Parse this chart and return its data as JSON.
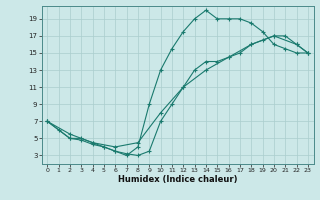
{
  "xlabel": "Humidex (Indice chaleur)",
  "bg_color": "#cce8e8",
  "line_color": "#1a7a6e",
  "grid_color": "#aacece",
  "xlim": [
    -0.5,
    23.5
  ],
  "ylim": [
    2,
    20.5
  ],
  "xticks": [
    0,
    1,
    2,
    3,
    4,
    5,
    6,
    7,
    8,
    9,
    10,
    11,
    12,
    13,
    14,
    15,
    16,
    17,
    18,
    19,
    20,
    21,
    22,
    23
  ],
  "yticks": [
    3,
    5,
    7,
    9,
    11,
    13,
    15,
    17,
    19
  ],
  "line1_x": [
    0,
    1,
    2,
    3,
    4,
    5,
    6,
    7,
    8,
    9,
    10,
    11,
    12,
    13,
    14,
    15,
    16,
    17,
    18,
    19,
    20,
    21,
    22,
    23
  ],
  "line1_y": [
    7,
    6,
    5,
    5,
    4.5,
    4,
    3.5,
    3,
    4,
    9,
    13,
    15.5,
    17.5,
    19,
    20,
    19,
    19,
    19,
    18.5,
    17.5,
    16,
    15.5,
    15,
    15
  ],
  "line2_x": [
    0,
    2,
    3,
    4,
    5,
    6,
    7,
    8,
    9,
    10,
    11,
    12,
    13,
    14,
    15,
    16,
    17,
    18,
    19,
    20,
    21,
    22,
    23
  ],
  "line2_y": [
    7,
    5,
    4.8,
    4.3,
    4,
    3.5,
    3.2,
    3,
    3.5,
    7,
    9,
    11,
    13,
    14,
    14,
    14.5,
    15,
    16,
    16.5,
    17,
    17,
    16,
    15
  ],
  "line3_x": [
    0,
    2,
    4,
    6,
    8,
    10,
    12,
    14,
    16,
    18,
    20,
    22,
    23
  ],
  "line3_y": [
    7,
    5.5,
    4.5,
    4,
    4.5,
    8,
    11,
    13,
    14.5,
    16,
    17,
    16,
    15
  ]
}
